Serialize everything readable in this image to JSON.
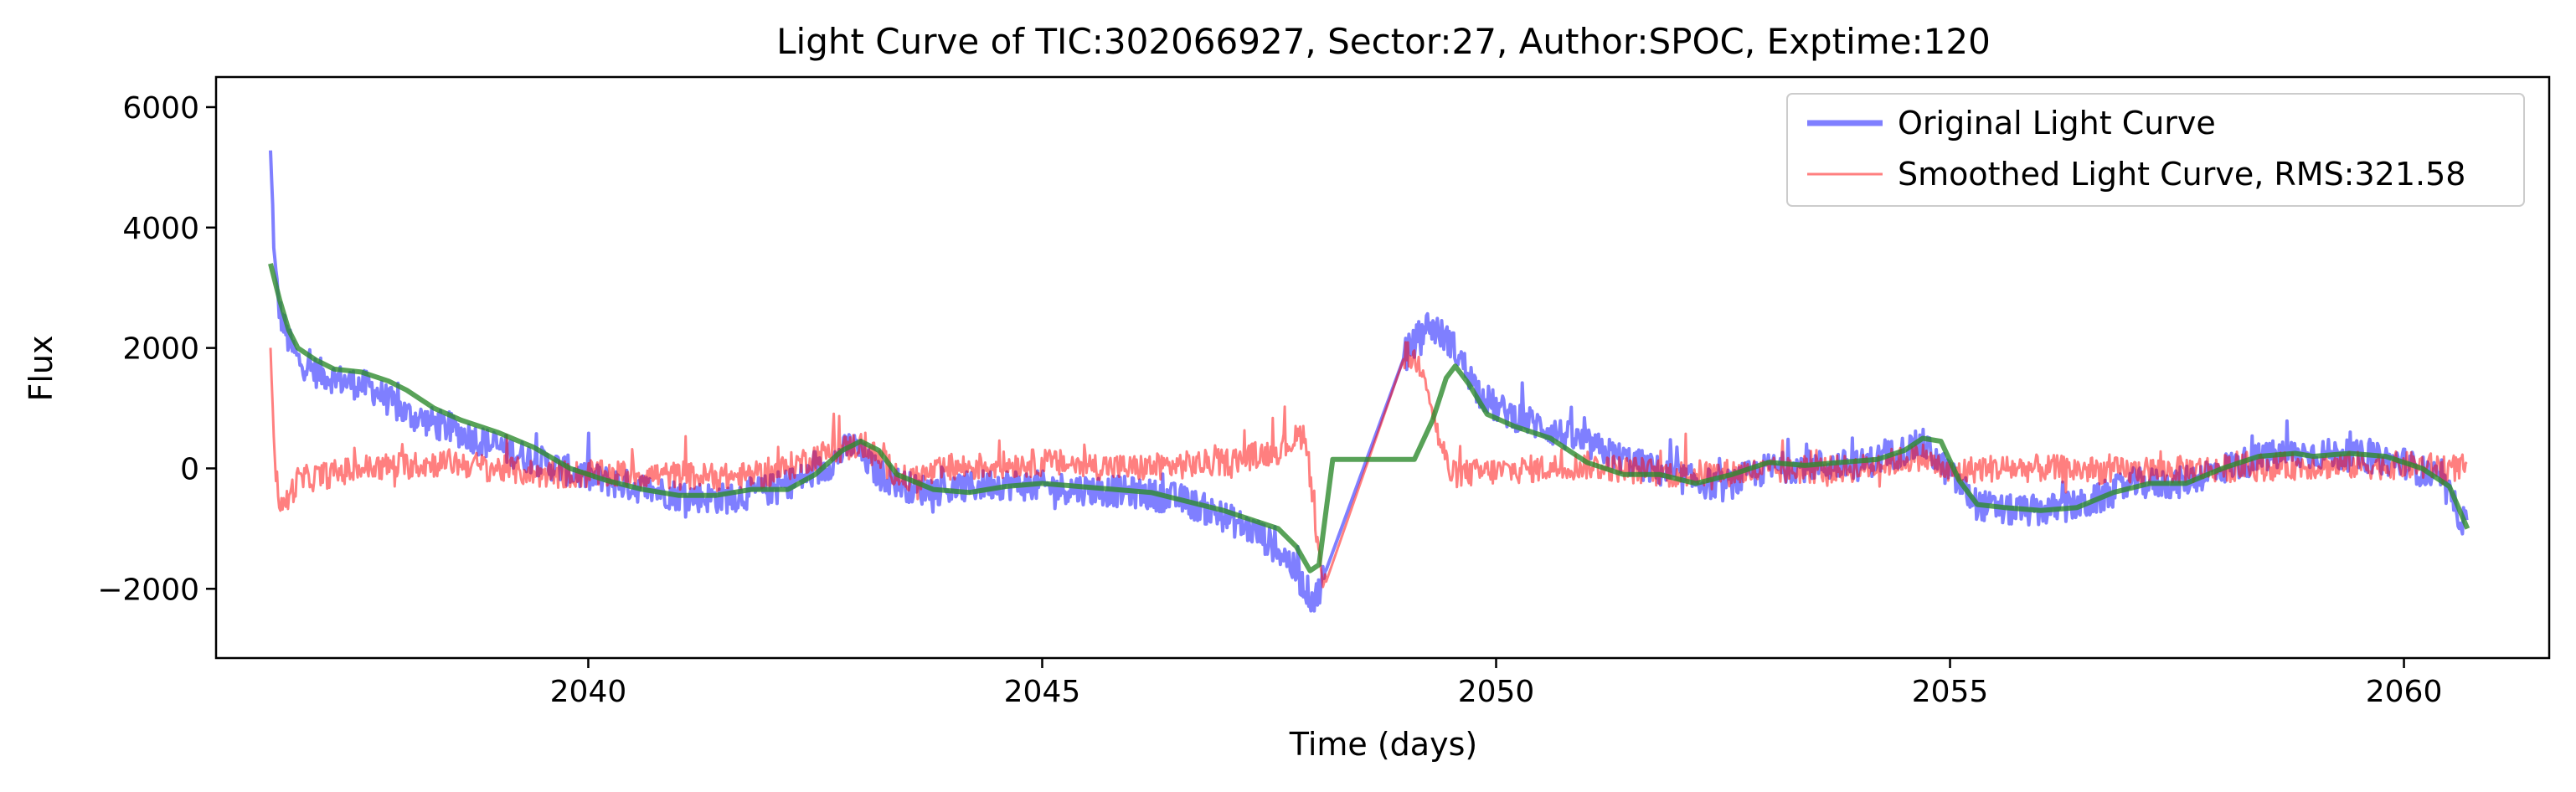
{
  "chart_data": {
    "type": "line",
    "title": "Light Curve of TIC:302066927, Sector:27, Author:SPOC, Exptime:120",
    "xlabel": "Time (days)",
    "ylabel": "Flux",
    "xlim": [
      2035.9,
      2061.6
    ],
    "ylim": [
      -3150,
      6500
    ],
    "xticks": [
      2040,
      2045,
      2050,
      2055,
      2060
    ],
    "yticks": [
      -2000,
      0,
      2000,
      4000,
      6000
    ],
    "ytick_labels": [
      "−2000",
      "0",
      "2000",
      "4000",
      "6000"
    ],
    "grid": false,
    "legend_position": "top-right",
    "legend": [
      {
        "label": "Original Light Curve",
        "color": "#0000ff",
        "opacity": 0.5
      },
      {
        "label": "Smoothed Light Curve, RMS:321.58",
        "color": "#ff0000",
        "opacity": 0.5
      }
    ],
    "series": [
      {
        "name": "Original Light Curve",
        "color": "#0000ff",
        "opacity": 0.5,
        "noise": 260,
        "x": [
          2036.5,
          2036.55,
          2036.6,
          2036.7,
          2036.8,
          2037.0,
          2037.3,
          2037.6,
          2038.0,
          2038.5,
          2039.0,
          2039.5,
          2040.0,
          2040.5,
          2041.0,
          2041.5,
          2042.0,
          2042.3,
          2042.6,
          2042.9,
          2043.2,
          2043.6,
          2044.0,
          2044.5,
          2045.0,
          2045.5,
          2046.0,
          2046.5,
          2047.0,
          2047.4,
          2047.7,
          2047.9,
          2048.0,
          2048.1,
          2049.0,
          2049.25,
          2049.5,
          2049.8,
          2050.0,
          2050.5,
          2051.0,
          2051.5,
          2052.0,
          2052.5,
          2053.0,
          2053.5,
          2054.0,
          2054.5,
          2054.7,
          2055.0,
          2055.3,
          2055.6,
          2056.0,
          2056.5,
          2057.0,
          2057.5,
          2058.0,
          2058.5,
          2059.0,
          2059.5,
          2060.0,
          2060.4,
          2060.7
        ],
        "y": [
          5200,
          3300,
          2600,
          2100,
          1800,
          1600,
          1450,
          1350,
          900,
          650,
          350,
          100,
          -150,
          -300,
          -450,
          -500,
          -350,
          -200,
          0,
          400,
          -100,
          -350,
          -350,
          -250,
          -300,
          -350,
          -400,
          -500,
          -800,
          -1100,
          -1500,
          -2000,
          -2200,
          -1800,
          1900,
          2400,
          2100,
          1300,
          1000,
          700,
          400,
          100,
          -150,
          -300,
          0,
          50,
          50,
          300,
          400,
          -100,
          -600,
          -700,
          -700,
          -600,
          -250,
          -250,
          0,
          200,
          250,
          200,
          100,
          -200,
          -1000
        ]
      },
      {
        "name": "Smoothed Light Curve, RMS:321.58",
        "color": "#ff0000",
        "opacity": 0.5,
        "noise": 230,
        "x": [
          2036.5,
          2036.55,
          2036.62,
          2036.8,
          2037.5,
          2038.5,
          2039.5,
          2040.5,
          2041.5,
          2042.0,
          2042.5,
          2043.0,
          2043.5,
          2044.0,
          2045.0,
          2046.0,
          2047.0,
          2047.6,
          2047.9,
          2048.05,
          2048.1,
          2049.0,
          2049.2,
          2049.35,
          2049.5,
          2050.0,
          2050.5,
          2051.0,
          2052.0,
          2053.0,
          2054.0,
          2054.7,
          2055.0,
          2055.3,
          2056.0,
          2057.0,
          2058.0,
          2059.0,
          2060.0,
          2060.7
        ],
        "y": [
          2200,
          0,
          -700,
          -200,
          0,
          100,
          -100,
          -100,
          -150,
          -100,
          200,
          400,
          -200,
          0,
          100,
          0,
          100,
          300,
          600,
          -1500,
          -2000,
          1900,
          1700,
          600,
          -100,
          -50,
          0,
          50,
          -100,
          -50,
          0,
          200,
          -100,
          0,
          0,
          -50,
          0,
          50,
          50,
          0
        ]
      },
      {
        "name": "",
        "color": "#2e8b2e",
        "opacity": 0.8,
        "x": [
          2036.5,
          2036.6,
          2036.7,
          2036.8,
          2037.0,
          2037.2,
          2037.5,
          2037.8,
          2038.0,
          2038.3,
          2038.6,
          2039.0,
          2039.4,
          2039.8,
          2040.2,
          2040.6,
          2041.0,
          2041.4,
          2041.8,
          2042.2,
          2042.5,
          2042.8,
          2043.0,
          2043.2,
          2043.4,
          2043.8,
          2044.2,
          2044.6,
          2045.0,
          2045.4,
          2045.8,
          2046.2,
          2046.6,
          2047.0,
          2047.3,
          2047.6,
          2047.8,
          2047.95,
          2048.05,
          2048.2,
          2049.0,
          2049.1,
          2049.3,
          2049.45,
          2049.55,
          2049.7,
          2049.9,
          2050.2,
          2050.6,
          2051.0,
          2051.4,
          2051.8,
          2052.2,
          2052.6,
          2052.8,
          2053.0,
          2053.4,
          2053.8,
          2054.2,
          2054.5,
          2054.7,
          2054.9,
          2055.1,
          2055.3,
          2055.6,
          2056.0,
          2056.4,
          2056.8,
          2057.2,
          2057.6,
          2058.0,
          2058.4,
          2058.8,
          2059.0,
          2059.4,
          2059.8,
          2060.2,
          2060.5,
          2060.7
        ],
        "y": [
          3400,
          2800,
          2300,
          2000,
          1800,
          1650,
          1600,
          1450,
          1300,
          1000,
          800,
          600,
          350,
          0,
          -200,
          -350,
          -450,
          -450,
          -350,
          -350,
          -100,
          300,
          450,
          300,
          -100,
          -350,
          -400,
          -300,
          -250,
          -300,
          -350,
          -400,
          -550,
          -700,
          -850,
          -1000,
          -1300,
          -1700,
          -1600,
          150,
          150,
          150,
          800,
          1500,
          1700,
          1400,
          900,
          700,
          500,
          100,
          -100,
          -100,
          -250,
          -100,
          0,
          100,
          50,
          100,
          150,
          300,
          500,
          450,
          -200,
          -600,
          -650,
          -700,
          -650,
          -400,
          -250,
          -250,
          0,
          200,
          250,
          200,
          250,
          200,
          0,
          -300,
          -1000
        ]
      }
    ]
  }
}
